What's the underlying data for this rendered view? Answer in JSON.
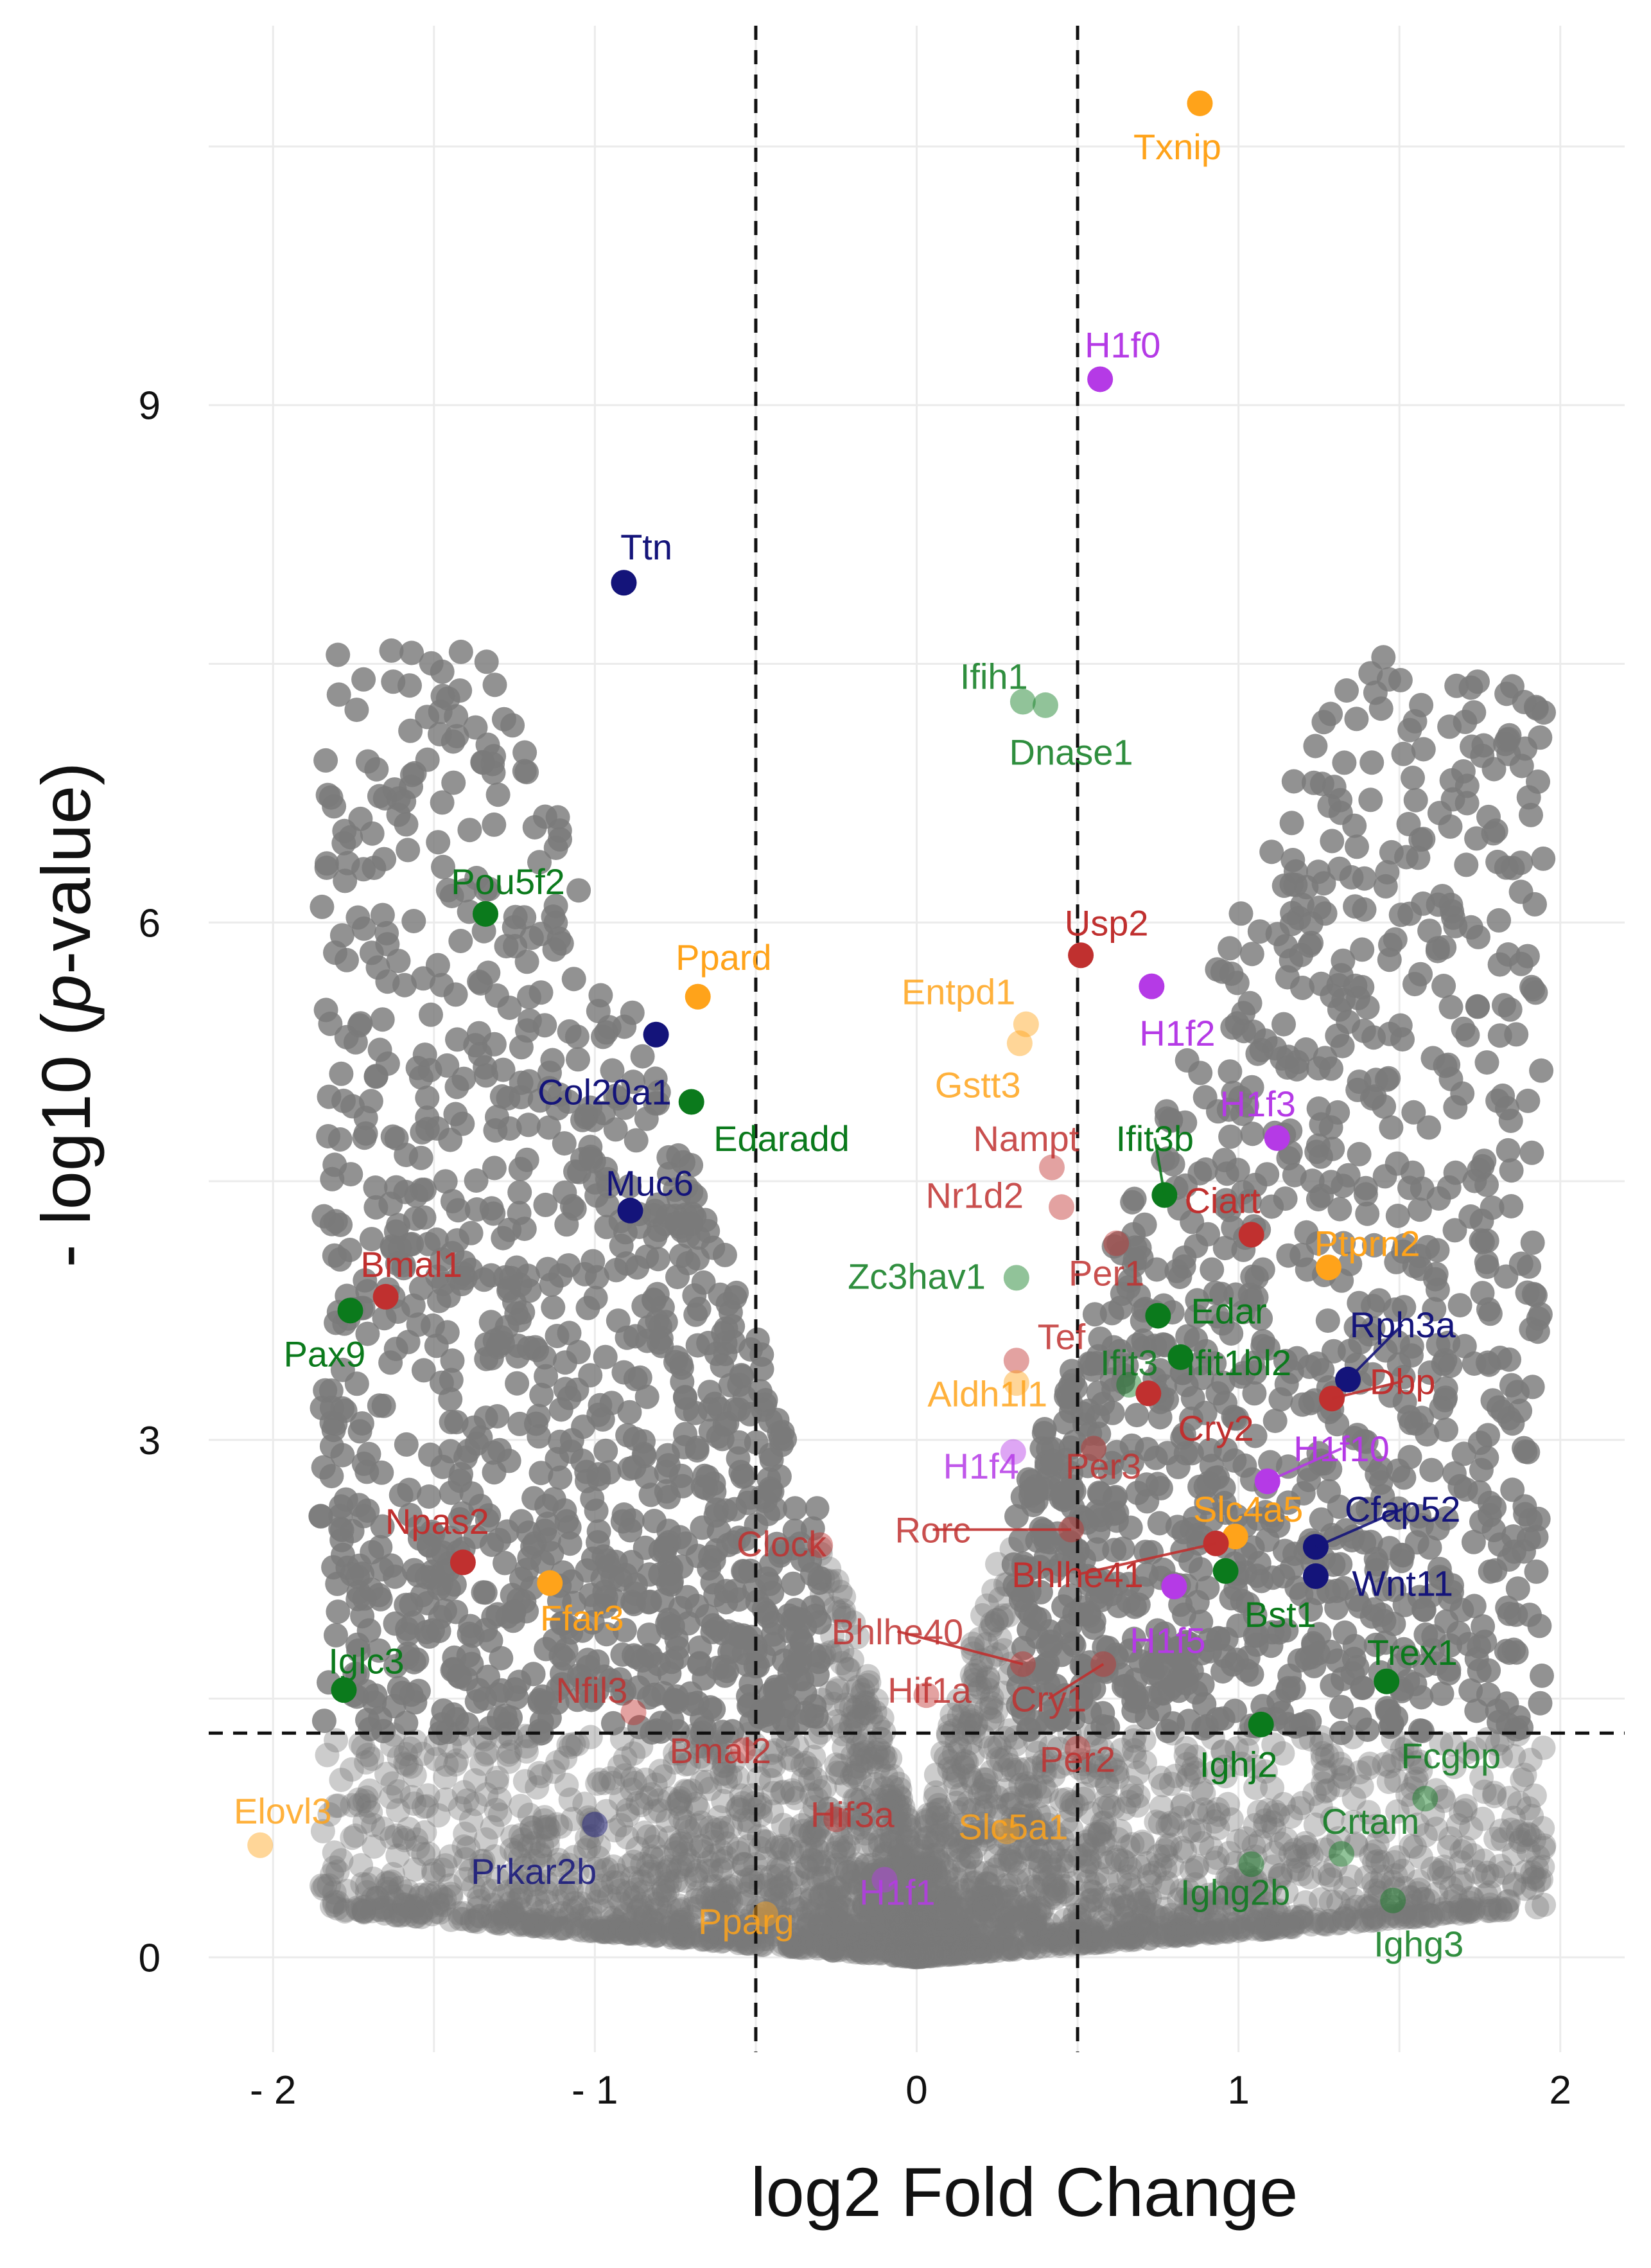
{
  "chart_data": {
    "type": "scatter",
    "xlabel": "log2 Fold Change",
    "ylabel_parts": [
      "- log10 (",
      "p",
      "-value)"
    ],
    "xlim": [
      -2.2,
      2.2
    ],
    "ylim": [
      -0.55,
      11.2
    ],
    "x_ticks": [
      {
        "value": -2,
        "label": "- 2"
      },
      {
        "value": -1,
        "label": "- 1"
      },
      {
        "value": 0,
        "label": "0"
      },
      {
        "value": 1,
        "label": "1"
      },
      {
        "value": 2,
        "label": "2"
      }
    ],
    "y_ticks": [
      {
        "value": 0,
        "label": "0"
      },
      {
        "value": 3,
        "label": "3"
      },
      {
        "value": 6,
        "label": "6"
      },
      {
        "value": 9,
        "label": "9"
      }
    ],
    "thresholds": {
      "x": [
        -0.5,
        0.5
      ],
      "y": 1.3
    },
    "grid": true,
    "colors": {
      "red": "#c0302f",
      "green": "#0b7a1c",
      "orange": "#ffa31a",
      "navy": "#14147a",
      "purple": "#b53ae6",
      "grey": "#7a7a7a"
    },
    "highlighted": [
      {
        "gene": "Txnip",
        "x": 0.88,
        "y": 10.75,
        "color": "orange",
        "lx": 0.81,
        "ly": 10.5
      },
      {
        "gene": "H1f0",
        "x": 0.57,
        "y": 9.15,
        "color": "purple",
        "lx": 0.64,
        "ly": 9.35
      },
      {
        "gene": "Ttn",
        "x": -0.91,
        "y": 7.97,
        "color": "navy",
        "lx": -0.84,
        "ly": 8.18
      },
      {
        "gene": "Ifih1",
        "x": 0.33,
        "y": 7.28,
        "color": "green",
        "faded": true,
        "lx": 0.24,
        "ly": 7.43
      },
      {
        "gene": "Dnase1",
        "x": 0.4,
        "y": 7.26,
        "color": "green",
        "faded": true,
        "lx": 0.48,
        "ly": 6.99
      },
      {
        "gene": "Pou5f2",
        "x": -1.34,
        "y": 6.05,
        "color": "green",
        "lx": -1.27,
        "ly": 6.24
      },
      {
        "gene": "Usp2",
        "x": 0.51,
        "y": 5.81,
        "color": "red",
        "lx": 0.59,
        "ly": 6.0
      },
      {
        "gene": "Ppard",
        "x": -0.68,
        "y": 5.57,
        "color": "orange",
        "lx": -0.6,
        "ly": 5.8
      },
      {
        "gene": "Entpd1",
        "x": 0.34,
        "y": 5.41,
        "color": "orange",
        "faded": true,
        "lx": 0.13,
        "ly": 5.6
      },
      {
        "gene": "H1f2",
        "x": 0.73,
        "y": 5.63,
        "color": "purple",
        "lx": 0.81,
        "ly": 5.36
      },
      {
        "gene": "Col20a1",
        "x": -0.81,
        "y": 5.35,
        "color": "navy",
        "lx": -0.97,
        "ly": 5.02
      },
      {
        "gene": "Gstt3",
        "x": 0.32,
        "y": 5.3,
        "color": "orange",
        "faded": true,
        "lx": 0.19,
        "ly": 5.06
      },
      {
        "gene": "Edaradd",
        "x": -0.7,
        "y": 4.96,
        "color": "green",
        "lx": -0.42,
        "ly": 4.75
      },
      {
        "gene": "H1f3",
        "x": 1.12,
        "y": 4.75,
        "color": "purple",
        "lx": 1.06,
        "ly": 4.95
      },
      {
        "gene": "Nampt",
        "x": 0.42,
        "y": 4.58,
        "color": "red",
        "faded": true,
        "lx": 0.34,
        "ly": 4.75
      },
      {
        "gene": "Ifit3b",
        "x": 0.77,
        "y": 4.42,
        "color": "green",
        "lx": 0.74,
        "ly": 4.75,
        "leader": true
      },
      {
        "gene": "Muc6",
        "x": -0.89,
        "y": 4.33,
        "color": "navy",
        "lx": -0.83,
        "ly": 4.49
      },
      {
        "gene": "Nr1d2",
        "x": 0.45,
        "y": 4.35,
        "color": "red",
        "faded": true,
        "lx": 0.18,
        "ly": 4.42
      },
      {
        "gene": "Ciart",
        "x": 1.04,
        "y": 4.19,
        "color": "red",
        "lx": 0.95,
        "ly": 4.39
      },
      {
        "gene": "Ptprn2",
        "x": 1.28,
        "y": 4.0,
        "color": "orange",
        "lx": 1.4,
        "ly": 4.14
      },
      {
        "gene": "Bmal1",
        "x": -1.65,
        "y": 3.83,
        "color": "red",
        "lx": -1.57,
        "ly": 4.02
      },
      {
        "gene": "Zc3hav1",
        "x": 0.31,
        "y": 3.94,
        "color": "green",
        "faded": true,
        "lx": 0.0,
        "ly": 3.95
      },
      {
        "gene": "Per1",
        "x": 0.62,
        "y": 4.14,
        "color": "red",
        "faded": true,
        "lx": 0.59,
        "ly": 3.97
      },
      {
        "gene": "Pax9",
        "x": -1.76,
        "y": 3.75,
        "color": "green",
        "lx": -1.84,
        "ly": 3.5
      },
      {
        "gene": "Edar",
        "x": 0.75,
        "y": 3.72,
        "color": "green",
        "lx": 0.97,
        "ly": 3.75
      },
      {
        "gene": "Rph3a",
        "x": 1.34,
        "y": 3.35,
        "color": "navy",
        "lx": 1.51,
        "ly": 3.67,
        "leader": true
      },
      {
        "gene": "Tef",
        "x": 0.31,
        "y": 3.46,
        "color": "red",
        "faded": true,
        "lx": 0.45,
        "ly": 3.6
      },
      {
        "gene": "Ifit3",
        "x": 0.66,
        "y": 3.32,
        "color": "green",
        "faded": true,
        "lx": 0.66,
        "ly": 3.45
      },
      {
        "gene": "Ifit1bl2",
        "x": 0.82,
        "y": 3.48,
        "color": "green",
        "lx": 1.0,
        "ly": 3.45
      },
      {
        "gene": "Dbp",
        "x": 1.29,
        "y": 3.24,
        "color": "red",
        "lx": 1.51,
        "ly": 3.34,
        "leader": true
      },
      {
        "gene": "Aldh1l1",
        "x": 0.31,
        "y": 3.33,
        "color": "orange",
        "faded": true,
        "lx": 0.22,
        "ly": 3.27
      },
      {
        "gene": "Cry2",
        "x": 0.72,
        "y": 3.27,
        "color": "red",
        "lx": 0.93,
        "ly": 3.07
      },
      {
        "gene": "H1f10",
        "x": 1.09,
        "y": 2.76,
        "color": "purple",
        "lx": 1.32,
        "ly": 2.95,
        "leader": true
      },
      {
        "gene": "H1f4",
        "x": 0.3,
        "y": 2.93,
        "color": "purple",
        "faded": true,
        "lx": 0.2,
        "ly": 2.85
      },
      {
        "gene": "Per3",
        "x": 0.55,
        "y": 2.95,
        "color": "red",
        "faded": true,
        "lx": 0.58,
        "ly": 2.85
      },
      {
        "gene": "Npas2",
        "x": -1.41,
        "y": 2.29,
        "color": "red",
        "lx": -1.49,
        "ly": 2.53
      },
      {
        "gene": "Slc4a5",
        "x": 0.99,
        "y": 2.44,
        "color": "orange",
        "lx": 1.03,
        "ly": 2.6
      },
      {
        "gene": "Cfap52",
        "x": 1.24,
        "y": 2.38,
        "color": "navy",
        "lx": 1.51,
        "ly": 2.6,
        "leader": true
      },
      {
        "gene": "Rorc",
        "x": 0.48,
        "y": 2.48,
        "color": "red",
        "faded": true,
        "lx": 0.05,
        "ly": 2.48,
        "leader": true
      },
      {
        "gene": "Clock",
        "x": -0.3,
        "y": 2.39,
        "color": "red",
        "faded": true,
        "lx": -0.42,
        "ly": 2.4
      },
      {
        "gene": "Ffar3",
        "x": -1.14,
        "y": 2.17,
        "color": "orange",
        "lx": -1.04,
        "ly": 1.97
      },
      {
        "gene": "Bhlhe41",
        "x": 0.93,
        "y": 2.4,
        "color": "red",
        "lx": 0.5,
        "ly": 2.22,
        "leader": true
      },
      {
        "gene": "H1f5",
        "x": 0.8,
        "y": 2.15,
        "color": "purple",
        "lx": 0.78,
        "ly": 1.84
      },
      {
        "gene": "Wnt11",
        "x": 1.24,
        "y": 2.21,
        "color": "navy",
        "lx": 1.51,
        "ly": 2.17
      },
      {
        "gene": "Bst1",
        "x": 0.96,
        "y": 2.24,
        "color": "green",
        "lx": 1.13,
        "ly": 1.99
      },
      {
        "gene": "Bhlhe40",
        "x": 0.33,
        "y": 1.7,
        "color": "red",
        "faded": true,
        "lx": -0.06,
        "ly": 1.89,
        "leader": true
      },
      {
        "gene": "Iglc3",
        "x": -1.78,
        "y": 1.55,
        "color": "green",
        "lx": -1.71,
        "ly": 1.72
      },
      {
        "gene": "Trex1",
        "x": 1.46,
        "y": 1.6,
        "color": "green",
        "lx": 1.54,
        "ly": 1.77
      },
      {
        "gene": "Nfil3",
        "x": -0.88,
        "y": 1.42,
        "color": "red",
        "faded": true,
        "lx": -1.01,
        "ly": 1.55
      },
      {
        "gene": "Hif1a",
        "x": 0.03,
        "y": 1.52,
        "color": "red",
        "faded": true,
        "lx": 0.04,
        "ly": 1.55
      },
      {
        "gene": "Cry1",
        "x": 0.58,
        "y": 1.7,
        "color": "red",
        "faded": true,
        "lx": 0.41,
        "ly": 1.5,
        "leader": true
      },
      {
        "gene": "Ighj2",
        "x": 1.07,
        "y": 1.35,
        "color": "green",
        "lx": 1.0,
        "ly": 1.12
      },
      {
        "gene": "Bmal2",
        "x": -0.54,
        "y": 1.2,
        "color": "red",
        "faded": true,
        "lx": -0.61,
        "ly": 1.2
      },
      {
        "gene": "Per2",
        "x": 0.5,
        "y": 1.21,
        "color": "red",
        "faded": true,
        "lx": 0.5,
        "ly": 1.15
      },
      {
        "gene": "Fcgbp",
        "x": 1.58,
        "y": 0.92,
        "color": "green",
        "faded": true,
        "lx": 1.66,
        "ly": 1.17
      },
      {
        "gene": "Elovl3",
        "x": -2.04,
        "y": 0.65,
        "color": "orange",
        "faded": true,
        "lx": -1.97,
        "ly": 0.85
      },
      {
        "gene": "Hif3a",
        "x": -0.25,
        "y": 0.8,
        "color": "red",
        "faded": true,
        "lx": -0.2,
        "ly": 0.83
      },
      {
        "gene": "Crtam",
        "x": 1.32,
        "y": 0.6,
        "color": "green",
        "faded": true,
        "lx": 1.41,
        "ly": 0.79
      },
      {
        "gene": "Slc5a1",
        "x": 0.28,
        "y": 0.73,
        "color": "orange",
        "faded": true,
        "lx": 0.3,
        "ly": 0.76
      },
      {
        "gene": "Prkar2b",
        "x": -1.0,
        "y": 0.77,
        "color": "navy",
        "faded": true,
        "lx": -1.19,
        "ly": 0.5
      },
      {
        "gene": "Ighg2b",
        "x": 1.04,
        "y": 0.54,
        "color": "green",
        "faded": true,
        "lx": 0.99,
        "ly": 0.38
      },
      {
        "gene": "H1f1",
        "x": -0.1,
        "y": 0.45,
        "color": "purple",
        "faded": true,
        "lx": -0.06,
        "ly": 0.38
      },
      {
        "gene": "Pparg",
        "x": -0.47,
        "y": 0.25,
        "color": "orange",
        "faded": true,
        "lx": -0.53,
        "ly": 0.21
      },
      {
        "gene": "Ighg3",
        "x": 1.48,
        "y": 0.33,
        "color": "green",
        "faded": true,
        "lx": 1.56,
        "ly": 0.08
      }
    ]
  }
}
